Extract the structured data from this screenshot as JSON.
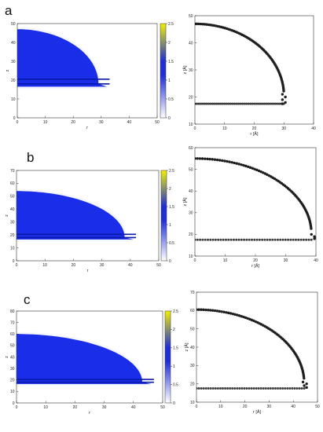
{
  "colors": {
    "density_high": "#1a2de8",
    "density_band": "#0a1aa8",
    "bar_low": "#ffffff",
    "bar_mid": "#1f2ed6",
    "bar_high": "#f0f000",
    "profile": "#1e1e1e"
  },
  "chart_data": [
    {
      "panel": "a",
      "type": "heatmap",
      "xlabel": "r",
      "ylabel": "z",
      "xlim": [
        0,
        50
      ],
      "ylim": [
        0,
        50
      ],
      "xticks": [
        "0",
        "10",
        "20",
        "30",
        "40",
        "50"
      ],
      "yticks": [
        "0",
        "10",
        "20",
        "30",
        "40",
        "50"
      ],
      "colorbar": {
        "range": [
          0,
          2.5
        ],
        "ticks": [
          "0",
          "0.5",
          "1",
          "1.5",
          "2",
          "2.5"
        ]
      },
      "density_cap": {
        "radius": 29,
        "top_z": 47,
        "base_z": 18
      },
      "substrate_bands_z": [
        18,
        20.5
      ]
    },
    {
      "panel": "a",
      "type": "scatter",
      "xlabel": "r [Å]",
      "ylabel": "z [Å]",
      "xlim": [
        0,
        40
      ],
      "ylim": [
        10,
        50
      ],
      "xticks": [
        "0",
        "10",
        "20",
        "30",
        "40"
      ],
      "yticks": [
        "10",
        "20",
        "30",
        "40",
        "50"
      ],
      "profile": {
        "top_z": 47,
        "edge_r": 30,
        "base_z": 17.5,
        "foot": [
          [
            29.5,
            21
          ],
          [
            30.5,
            20
          ],
          [
            29.5,
            19
          ],
          [
            30.5,
            18
          ],
          [
            29.5,
            17.5
          ]
        ]
      }
    },
    {
      "panel": "b",
      "type": "heatmap",
      "xlabel": "r",
      "ylabel": "z",
      "xlim": [
        0,
        50
      ],
      "ylim": [
        0,
        70
      ],
      "xticks": [
        "0",
        "10",
        "20",
        "30",
        "40",
        "50"
      ],
      "yticks": [
        "0",
        "10",
        "20",
        "30",
        "40",
        "50",
        "60",
        "70"
      ],
      "colorbar": {
        "range": [
          0,
          2.5
        ],
        "ticks": [
          "0",
          "0.5",
          "1",
          "1.5",
          "2",
          "2.5"
        ]
      },
      "density_cap": {
        "radius": 38,
        "top_z": 54,
        "base_z": 18
      },
      "substrate_bands_z": [
        18,
        20.5
      ]
    },
    {
      "panel": "b",
      "type": "scatter",
      "xlabel": "r [Å]",
      "ylabel": "z [Å]",
      "xlim": [
        0,
        40
      ],
      "ylim": [
        10,
        60
      ],
      "xticks": [
        "0",
        "10",
        "20",
        "30",
        "40"
      ],
      "yticks": [
        "10",
        "20",
        "30",
        "40",
        "50",
        "60"
      ],
      "profile": {
        "top_z": 55,
        "edge_r": 38.5,
        "base_z": 17.5,
        "foot": [
          [
            38.5,
            20
          ],
          [
            39.5,
            19
          ],
          [
            39.8,
            18.5
          ],
          [
            39.5,
            18
          ]
        ]
      }
    },
    {
      "panel": "c",
      "type": "heatmap",
      "xlabel": "r",
      "ylabel": "z",
      "xlim": [
        0,
        50
      ],
      "ylim": [
        0,
        80
      ],
      "xticks": [
        "0",
        "10",
        "20",
        "30",
        "40",
        "50"
      ],
      "yticks": [
        "0",
        "10",
        "20",
        "30",
        "40",
        "50",
        "60",
        "70",
        "80"
      ],
      "colorbar": {
        "range": [
          0,
          2.5
        ],
        "ticks": [
          "0",
          "0.5",
          "1",
          "1.5",
          "2",
          "2.5"
        ]
      },
      "density_cap": {
        "radius": 43,
        "top_z": 60,
        "base_z": 18
      },
      "substrate_bands_z": [
        18,
        20.5
      ]
    },
    {
      "panel": "c",
      "type": "scatter",
      "xlabel": "r [Å]",
      "ylabel": "z [Å]",
      "xlim": [
        0,
        50
      ],
      "ylim": [
        10,
        70
      ],
      "xticks": [
        "0",
        "10",
        "20",
        "30",
        "40",
        "50"
      ],
      "yticks": [
        "10",
        "20",
        "30",
        "40",
        "50",
        "60",
        "70"
      ],
      "profile": {
        "top_z": 60.5,
        "edge_r": 44.5,
        "base_z": 17.5,
        "foot": [
          [
            44,
            21
          ],
          [
            45.5,
            20
          ],
          [
            44.5,
            19
          ],
          [
            45.5,
            18
          ]
        ]
      }
    }
  ]
}
